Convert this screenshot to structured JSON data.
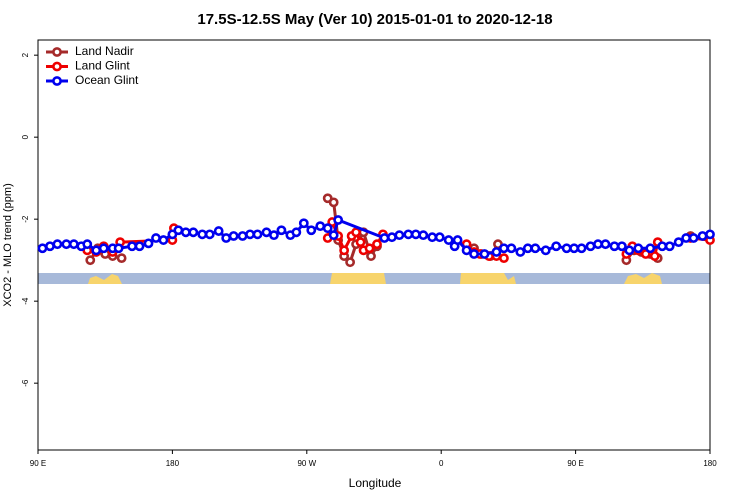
{
  "chart_data": {
    "type": "line",
    "title": "17.5S-12.5S May (Ver 10)   2015-01-01 to 2020-12-18",
    "x_label": "Longitude",
    "y_label": "XCO2 - MLO trend (ppm)",
    "xlim": [
      90,
      540
    ],
    "ylim": [
      -7.63,
      2.37
    ],
    "xticks": [
      {
        "value": 90,
        "label": "90 E"
      },
      180,
      {
        "value": 270,
        "label": "90 W"
      },
      {
        "value": 360,
        "label": "0"
      },
      {
        "value": 450,
        "label": "90 E"
      },
      {
        "value": 540,
        "label": "180"
      }
    ],
    "yticks": [
      -6,
      -4,
      -2,
      0,
      2
    ],
    "legend": "top-left",
    "series": [
      {
        "name": "Land Nadir",
        "color": "#a52a2a",
        "x": [
          125,
          130,
          135,
          140,
          146,
          null,
          284,
          288,
          291,
          295,
          299,
          303,
          308,
          313,
          317,
          null,
          382,
          387,
          393,
          398,
          null,
          484,
          489,
          494,
          500,
          505,
          null,
          527
        ],
        "values": [
          -3.0,
          -2.71,
          -2.85,
          -2.9,
          -2.95,
          null,
          -1.49,
          -1.59,
          -2.51,
          -2.9,
          -3.05,
          -2.61,
          -2.32,
          -2.9,
          -2.66,
          null,
          -2.71,
          -2.85,
          -2.9,
          -2.61,
          null,
          -3.0,
          -2.76,
          -2.8,
          -2.85,
          -2.95,
          null,
          -2.41
        ]
      },
      {
        "name": "Land Glint",
        "color": "#ee0000",
        "x": [
          123,
          129,
          134,
          140,
          145,
          180,
          181,
          null,
          284,
          287,
          291,
          295,
          300,
          303,
          306,
          308,
          312,
          317,
          321,
          null,
          377,
          382,
          386,
          392,
          397,
          402,
          null,
          484,
          488,
          492,
          497,
          503,
          505,
          null,
          527,
          540
        ],
        "values": [
          -2.76,
          -2.8,
          -2.66,
          -2.8,
          -2.56,
          -2.51,
          -2.22,
          null,
          -2.46,
          -2.07,
          -2.41,
          -2.76,
          -2.41,
          -2.32,
          -2.56,
          -2.76,
          -2.71,
          -2.61,
          -2.37,
          null,
          -2.61,
          -2.8,
          -2.85,
          -2.9,
          -2.9,
          -2.95,
          null,
          -2.85,
          -2.66,
          -2.76,
          -2.85,
          -2.9,
          -2.56,
          null,
          -2.46,
          -2.51
        ]
      },
      {
        "name": "Ocean Glint",
        "color": "#0000ee",
        "x": [
          93,
          98,
          103,
          109,
          114,
          119,
          123,
          129,
          134,
          140,
          144,
          153,
          158,
          164,
          169,
          174,
          180,
          184,
          189,
          194,
          200,
          205,
          211,
          216,
          221,
          227,
          232,
          237,
          243,
          248,
          253,
          259,
          263,
          268,
          273,
          279,
          284,
          288,
          291,
          322,
          327,
          332,
          338,
          343,
          348,
          354,
          359,
          365,
          369,
          371,
          377,
          382,
          389,
          397,
          402,
          407,
          413,
          418,
          423,
          430,
          437,
          444,
          449,
          454,
          460,
          465,
          470,
          476,
          481,
          486,
          492,
          500,
          508,
          513,
          519,
          524,
          529,
          535,
          540
        ],
        "values": [
          -2.71,
          -2.66,
          -2.61,
          -2.61,
          -2.61,
          -2.66,
          -2.61,
          -2.76,
          -2.71,
          -2.71,
          -2.71,
          -2.66,
          -2.66,
          -2.59,
          -2.46,
          -2.51,
          -2.37,
          -2.27,
          -2.32,
          -2.32,
          -2.37,
          -2.37,
          -2.29,
          -2.46,
          -2.41,
          -2.41,
          -2.37,
          -2.37,
          -2.32,
          -2.39,
          -2.27,
          -2.39,
          -2.32,
          -2.1,
          -2.27,
          -2.17,
          -2.22,
          -2.39,
          -2.02,
          -2.46,
          -2.44,
          -2.39,
          -2.37,
          -2.37,
          -2.39,
          -2.44,
          -2.44,
          -2.51,
          -2.66,
          -2.51,
          -2.76,
          -2.85,
          -2.85,
          -2.8,
          -2.71,
          -2.71,
          -2.8,
          -2.71,
          -2.71,
          -2.76,
          -2.66,
          -2.71,
          -2.71,
          -2.71,
          -2.66,
          -2.61,
          -2.61,
          -2.66,
          -2.66,
          -2.76,
          -2.71,
          -2.71,
          -2.66,
          -2.66,
          -2.56,
          -2.46,
          -2.46,
          -2.41,
          -2.37
        ]
      }
    ]
  }
}
